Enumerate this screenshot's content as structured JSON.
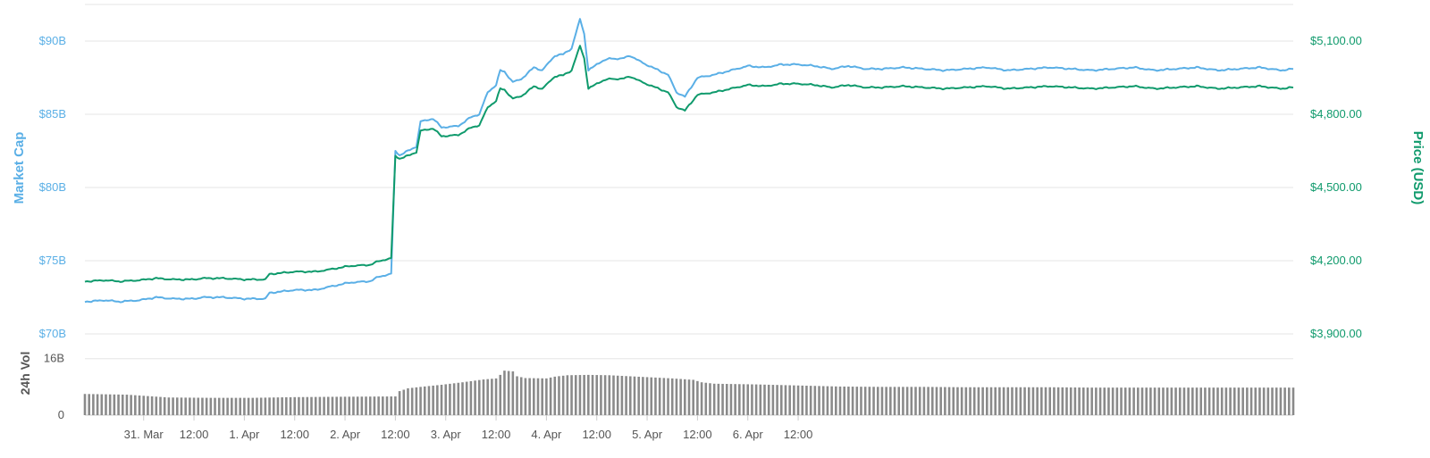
{
  "colors": {
    "market_cap": "#5aafe6",
    "price": "#0f9a6c",
    "volume": "#8a8a8a",
    "grid": "#e6e6e6",
    "axis_text": "#555555"
  },
  "chart_data": {
    "type": "line",
    "xlabel": "",
    "ylabel_left": "Market Cap",
    "ylabel_right": "Price (USD)",
    "volume_label": "24h Vol",
    "grid": true,
    "x_domain_hours": [
      -50,
      238
    ],
    "left_axis": {
      "ticks": [
        70,
        75,
        80,
        85,
        90
      ],
      "tick_labels": [
        "$70B",
        "$75B",
        "$80B",
        "$85B",
        "$90B"
      ],
      "ylim": [
        70,
        92.5
      ]
    },
    "right_axis": {
      "ticks": [
        3900,
        4200,
        4500,
        4800,
        5100
      ],
      "tick_labels": [
        "$3,900.00",
        "$4,200.00",
        "$4,500.00",
        "$4,800.00",
        "$5,100.00"
      ]
    },
    "volume_axis": {
      "ticks": [
        0,
        16
      ],
      "tick_labels": [
        "0",
        "16B"
      ],
      "ylim": [
        0,
        23
      ]
    },
    "x_ticks": [
      {
        "h": -36,
        "label": "31. Mar"
      },
      {
        "h": -24,
        "label": "12:00"
      },
      {
        "h": -12,
        "label": "1. Apr"
      },
      {
        "h": 0,
        "label": "12:00"
      },
      {
        "h": 12,
        "label": "2. Apr"
      },
      {
        "h": 24,
        "label": "12:00"
      },
      {
        "h": 36,
        "label": "3. Apr"
      },
      {
        "h": 48,
        "label": "12:00"
      },
      {
        "h": 60,
        "label": "4. Apr"
      },
      {
        "h": 72,
        "label": "12:00"
      },
      {
        "h": 84,
        "label": "5. Apr"
      },
      {
        "h": 96,
        "label": "12:00"
      },
      {
        "h": 108,
        "label": "6. Apr"
      },
      {
        "h": 120,
        "label": "12:00"
      }
    ],
    "series": [
      {
        "name": "Market Cap",
        "axis": "left",
        "points": [
          [
            -50,
            72.2
          ],
          [
            -45,
            72.3
          ],
          [
            -42,
            72.2
          ],
          [
            -37,
            72.3
          ],
          [
            -33,
            72.5
          ],
          [
            -29,
            72.4
          ],
          [
            -24,
            72.4
          ],
          [
            -22,
            72.5
          ],
          [
            -17,
            72.5
          ],
          [
            -12,
            72.4
          ],
          [
            -7,
            72.4
          ],
          [
            -6,
            72.8
          ],
          [
            -3,
            72.9
          ],
          [
            0,
            73.0
          ],
          [
            5,
            73.0
          ],
          [
            8,
            73.2
          ],
          [
            13,
            73.5
          ],
          [
            18,
            73.6
          ],
          [
            20,
            73.9
          ],
          [
            23,
            74.1
          ],
          [
            24,
            82.5
          ],
          [
            25,
            82.2
          ],
          [
            27,
            82.5
          ],
          [
            29,
            82.8
          ],
          [
            30,
            84.5
          ],
          [
            33,
            84.7
          ],
          [
            35,
            84.1
          ],
          [
            39,
            84.2
          ],
          [
            42,
            84.8
          ],
          [
            44,
            85.0
          ],
          [
            46,
            86.5
          ],
          [
            48,
            87.0
          ],
          [
            49,
            88.0
          ],
          [
            50,
            87.9
          ],
          [
            52,
            87.2
          ],
          [
            54,
            87.4
          ],
          [
            57,
            88.2
          ],
          [
            59,
            88.0
          ],
          [
            62,
            89.0
          ],
          [
            64,
            89.1
          ],
          [
            66,
            89.5
          ],
          [
            68,
            91.5
          ],
          [
            69,
            90.5
          ],
          [
            70,
            88.0
          ],
          [
            73,
            88.6
          ],
          [
            75,
            88.8
          ],
          [
            78,
            88.8
          ],
          [
            80,
            89.0
          ],
          [
            83,
            88.5
          ],
          [
            86,
            88.1
          ],
          [
            89,
            87.7
          ],
          [
            91,
            86.5
          ],
          [
            93,
            86.2
          ],
          [
            96,
            87.5
          ],
          [
            100,
            87.7
          ],
          [
            104,
            88.0
          ],
          [
            108,
            88.3
          ],
          [
            112,
            88.2
          ],
          [
            116,
            88.4
          ],
          [
            120,
            88.4
          ],
          [
            124,
            88.3
          ],
          [
            128,
            88.1
          ],
          [
            132,
            88.3
          ],
          [
            136,
            88.1
          ],
          [
            140,
            88.1
          ],
          [
            145,
            88.2
          ],
          [
            150,
            88.1
          ],
          [
            155,
            88.0
          ],
          [
            160,
            88.1
          ],
          [
            165,
            88.2
          ],
          [
            170,
            88.0
          ],
          [
            175,
            88.1
          ],
          [
            180,
            88.2
          ],
          [
            185,
            88.1
          ],
          [
            190,
            88.0
          ],
          [
            195,
            88.1
          ],
          [
            200,
            88.2
          ],
          [
            205,
            88.0
          ],
          [
            210,
            88.1
          ],
          [
            215,
            88.2
          ],
          [
            220,
            88.0
          ],
          [
            225,
            88.1
          ],
          [
            230,
            88.2
          ],
          [
            235,
            88.0
          ],
          [
            238,
            88.1
          ]
        ]
      },
      {
        "name": "Price (USD)",
        "axis": "right",
        "points": [
          [
            -50,
            4115
          ],
          [
            -45,
            4120
          ],
          [
            -42,
            4115
          ],
          [
            -37,
            4120
          ],
          [
            -33,
            4128
          ],
          [
            -29,
            4123
          ],
          [
            -24,
            4123
          ],
          [
            -22,
            4128
          ],
          [
            -17,
            4128
          ],
          [
            -12,
            4123
          ],
          [
            -7,
            4123
          ],
          [
            -6,
            4145
          ],
          [
            -3,
            4150
          ],
          [
            0,
            4155
          ],
          [
            5,
            4155
          ],
          [
            8,
            4163
          ],
          [
            13,
            4178
          ],
          [
            18,
            4183
          ],
          [
            20,
            4198
          ],
          [
            23,
            4210
          ],
          [
            24,
            4630
          ],
          [
            25,
            4618
          ],
          [
            27,
            4630
          ],
          [
            29,
            4645
          ],
          [
            30,
            4732
          ],
          [
            33,
            4742
          ],
          [
            35,
            4710
          ],
          [
            39,
            4715
          ],
          [
            42,
            4745
          ],
          [
            44,
            4755
          ],
          [
            46,
            4828
          ],
          [
            48,
            4855
          ],
          [
            49,
            4905
          ],
          [
            50,
            4900
          ],
          [
            52,
            4864
          ],
          [
            54,
            4874
          ],
          [
            57,
            4914
          ],
          [
            59,
            4904
          ],
          [
            62,
            4955
          ],
          [
            64,
            4960
          ],
          [
            66,
            4980
          ],
          [
            68,
            5080
          ],
          [
            69,
            5030
          ],
          [
            70,
            4905
          ],
          [
            73,
            4935
          ],
          [
            75,
            4945
          ],
          [
            78,
            4945
          ],
          [
            80,
            4955
          ],
          [
            83,
            4930
          ],
          [
            86,
            4910
          ],
          [
            89,
            4890
          ],
          [
            91,
            4830
          ],
          [
            93,
            4815
          ],
          [
            96,
            4880
          ],
          [
            100,
            4890
          ],
          [
            104,
            4905
          ],
          [
            108,
            4920
          ],
          [
            112,
            4915
          ],
          [
            116,
            4925
          ],
          [
            120,
            4925
          ],
          [
            124,
            4920
          ],
          [
            128,
            4910
          ],
          [
            132,
            4920
          ],
          [
            136,
            4910
          ],
          [
            140,
            4910
          ],
          [
            145,
            4915
          ],
          [
            150,
            4910
          ],
          [
            155,
            4905
          ],
          [
            160,
            4910
          ],
          [
            165,
            4915
          ],
          [
            170,
            4905
          ],
          [
            175,
            4910
          ],
          [
            180,
            4915
          ],
          [
            185,
            4910
          ],
          [
            190,
            4905
          ],
          [
            195,
            4910
          ],
          [
            200,
            4915
          ],
          [
            205,
            4905
          ],
          [
            210,
            4910
          ],
          [
            215,
            4915
          ],
          [
            220,
            4905
          ],
          [
            225,
            4910
          ],
          [
            230,
            4915
          ],
          [
            235,
            4905
          ],
          [
            238,
            4910
          ]
        ]
      },
      {
        "name": "24h Vol",
        "axis": "volume",
        "type": "bar",
        "points": [
          [
            -50,
            6.0
          ],
          [
            -40,
            5.8
          ],
          [
            -30,
            5.0
          ],
          [
            -20,
            4.9
          ],
          [
            -10,
            4.9
          ],
          [
            0,
            5.1
          ],
          [
            10,
            5.2
          ],
          [
            24,
            5.3
          ],
          [
            25,
            6.8
          ],
          [
            27,
            7.6
          ],
          [
            30,
            8.0
          ],
          [
            35,
            8.6
          ],
          [
            40,
            9.3
          ],
          [
            45,
            10.1
          ],
          [
            48,
            10.4
          ],
          [
            49,
            11.4
          ],
          [
            50,
            12.6
          ],
          [
            52,
            12.4
          ],
          [
            53,
            11.0
          ],
          [
            55,
            10.5
          ],
          [
            60,
            10.4
          ],
          [
            62,
            10.9
          ],
          [
            65,
            11.3
          ],
          [
            70,
            11.4
          ],
          [
            75,
            11.3
          ],
          [
            80,
            11.0
          ],
          [
            85,
            10.7
          ],
          [
            90,
            10.4
          ],
          [
            95,
            10.0
          ],
          [
            97,
            9.3
          ],
          [
            100,
            8.9
          ],
          [
            110,
            8.7
          ],
          [
            120,
            8.4
          ],
          [
            130,
            8.1
          ],
          [
            140,
            8.0
          ],
          [
            150,
            8.0
          ],
          [
            160,
            7.9
          ],
          [
            170,
            7.9
          ],
          [
            180,
            7.9
          ],
          [
            190,
            7.8
          ],
          [
            200,
            7.8
          ],
          [
            210,
            7.8
          ],
          [
            220,
            7.8
          ],
          [
            230,
            7.8
          ],
          [
            238,
            7.8
          ]
        ]
      }
    ]
  }
}
